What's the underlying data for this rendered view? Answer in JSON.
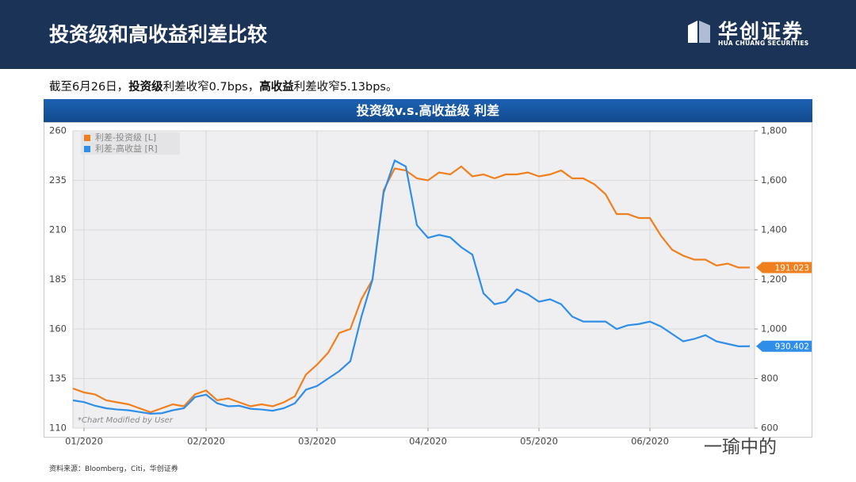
{
  "header": {
    "title": "投资级和高收益利差比较",
    "logo": "华创证券",
    "logo_en": "HUA CHUANG SECURITIES"
  },
  "subtitle": [
    {
      "text": "截至6月26日，",
      "bold": false
    },
    {
      "text": "投资级",
      "bold": true
    },
    {
      "text": "利差收窄0.7bps，",
      "bold": false
    },
    {
      "text": "高收益",
      "bold": true
    },
    {
      "text": "利差收窄5.13bps。",
      "bold": false
    }
  ],
  "chart_data": {
    "type": "line",
    "title": "投资级v.s.高收益级 利差",
    "note": "*Chart Modified by User",
    "grid": true,
    "legend": "top-left",
    "categories": [
      null,
      "01/2020",
      null,
      null,
      null,
      null,
      null,
      null,
      null,
      null,
      null,
      null,
      "02/2020",
      null,
      null,
      null,
      null,
      null,
      null,
      null,
      null,
      null,
      "03/2020",
      null,
      null,
      null,
      null,
      null,
      null,
      null,
      null,
      null,
      "04/2020",
      null,
      null,
      null,
      null,
      null,
      null,
      null,
      null,
      null,
      "05/2020",
      null,
      null,
      null,
      null,
      null,
      null,
      null,
      null,
      null,
      "06/2020",
      null,
      null,
      null,
      null,
      null,
      null,
      null,
      null,
      null
    ],
    "series": [
      {
        "name": "利差-投资级 [L]",
        "color": "#f07f1e",
        "axis": "y",
        "values": [
          130,
          128,
          127,
          124,
          123,
          122,
          120,
          118,
          120,
          122,
          121,
          127,
          129,
          124,
          125,
          123,
          121,
          122,
          121,
          123,
          126,
          137,
          142,
          148,
          158,
          160,
          175,
          185,
          230,
          241,
          240,
          236,
          235,
          239,
          238,
          242,
          237,
          238,
          236,
          238,
          238,
          239,
          237,
          238,
          240,
          236,
          236,
          233,
          228,
          218,
          218,
          216,
          216,
          207,
          200,
          197,
          195,
          195,
          192,
          193,
          191,
          191.023
        ]
      },
      {
        "name": "利差-高收益 [R]",
        "color": "#2f8ee8",
        "axis": "y2",
        "values": [
          712,
          705,
          690,
          680,
          675,
          672,
          665,
          658,
          660,
          672,
          680,
          725,
          735,
          700,
          688,
          690,
          678,
          675,
          670,
          680,
          700,
          755,
          770,
          800,
          830,
          870,
          1050,
          1200,
          1550,
          1680,
          1656,
          1419,
          1368,
          1380,
          1370,
          1330,
          1300,
          1144,
          1100,
          1110,
          1160,
          1140,
          1110,
          1120,
          1100,
          1050,
          1030,
          1030,
          1030,
          1000,
          1015,
          1020,
          1030,
          1010,
          980,
          950,
          960,
          975,
          950,
          940,
          930,
          930.402
        ]
      }
    ],
    "ylim": [
      110,
      260
    ],
    "yticks": [
      110,
      135,
      160,
      185,
      210,
      235,
      260
    ],
    "y2lim": [
      600,
      1800
    ],
    "y2ticks": [
      600,
      800,
      {
        "value": 1000,
        "label": "1,000"
      },
      {
        "value": 1200,
        "label": "1,200"
      },
      {
        "value": 1400,
        "label": "1,400"
      },
      {
        "value": 1600,
        "label": "1,600"
      },
      {
        "value": 1800,
        "label": "1,800"
      }
    ]
  },
  "source": "资料来源：Bloomberg，Citi，华创证券",
  "watermark": "一瑜中的"
}
